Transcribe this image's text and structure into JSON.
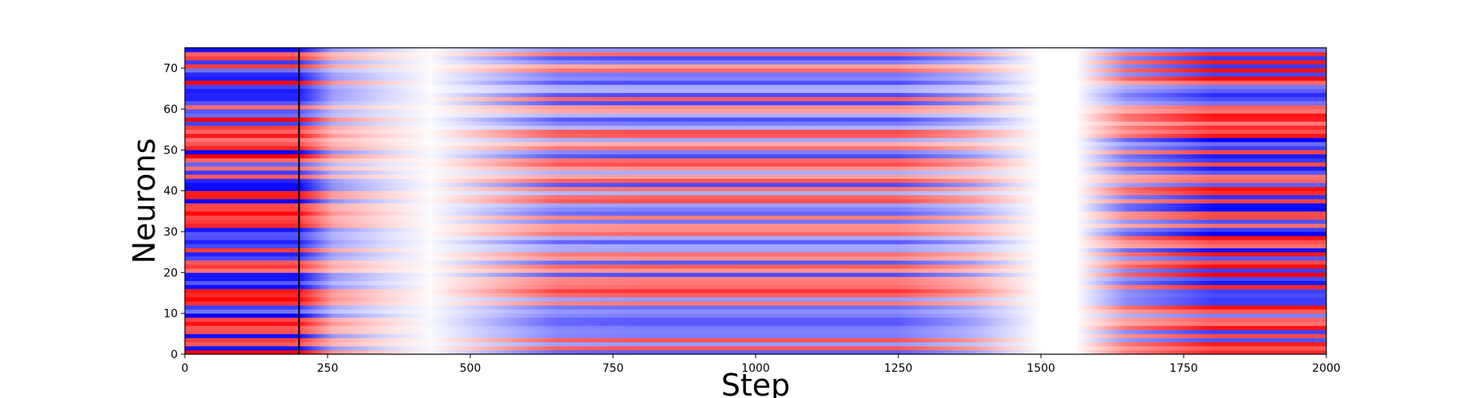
{
  "chart_data": {
    "type": "heatmap",
    "title": "",
    "xlabel": "Step",
    "ylabel": "Neurons",
    "xlim": [
      0,
      2000
    ],
    "ylim": [
      0,
      75
    ],
    "x_ticks": [
      "0",
      "250",
      "500",
      "750",
      "1000",
      "1250",
      "1500",
      "1750",
      "2000"
    ],
    "y_ticks": [
      "0",
      "10",
      "20",
      "30",
      "40",
      "50",
      "60",
      "70"
    ],
    "n_neurons": 75,
    "colormap": "bwr",
    "colors": {
      "low": "#0000ff",
      "mid": "#ffffff",
      "high": "#ff0000"
    },
    "vertical_marker_step": 200,
    "grid": false,
    "legend": "none"
  }
}
